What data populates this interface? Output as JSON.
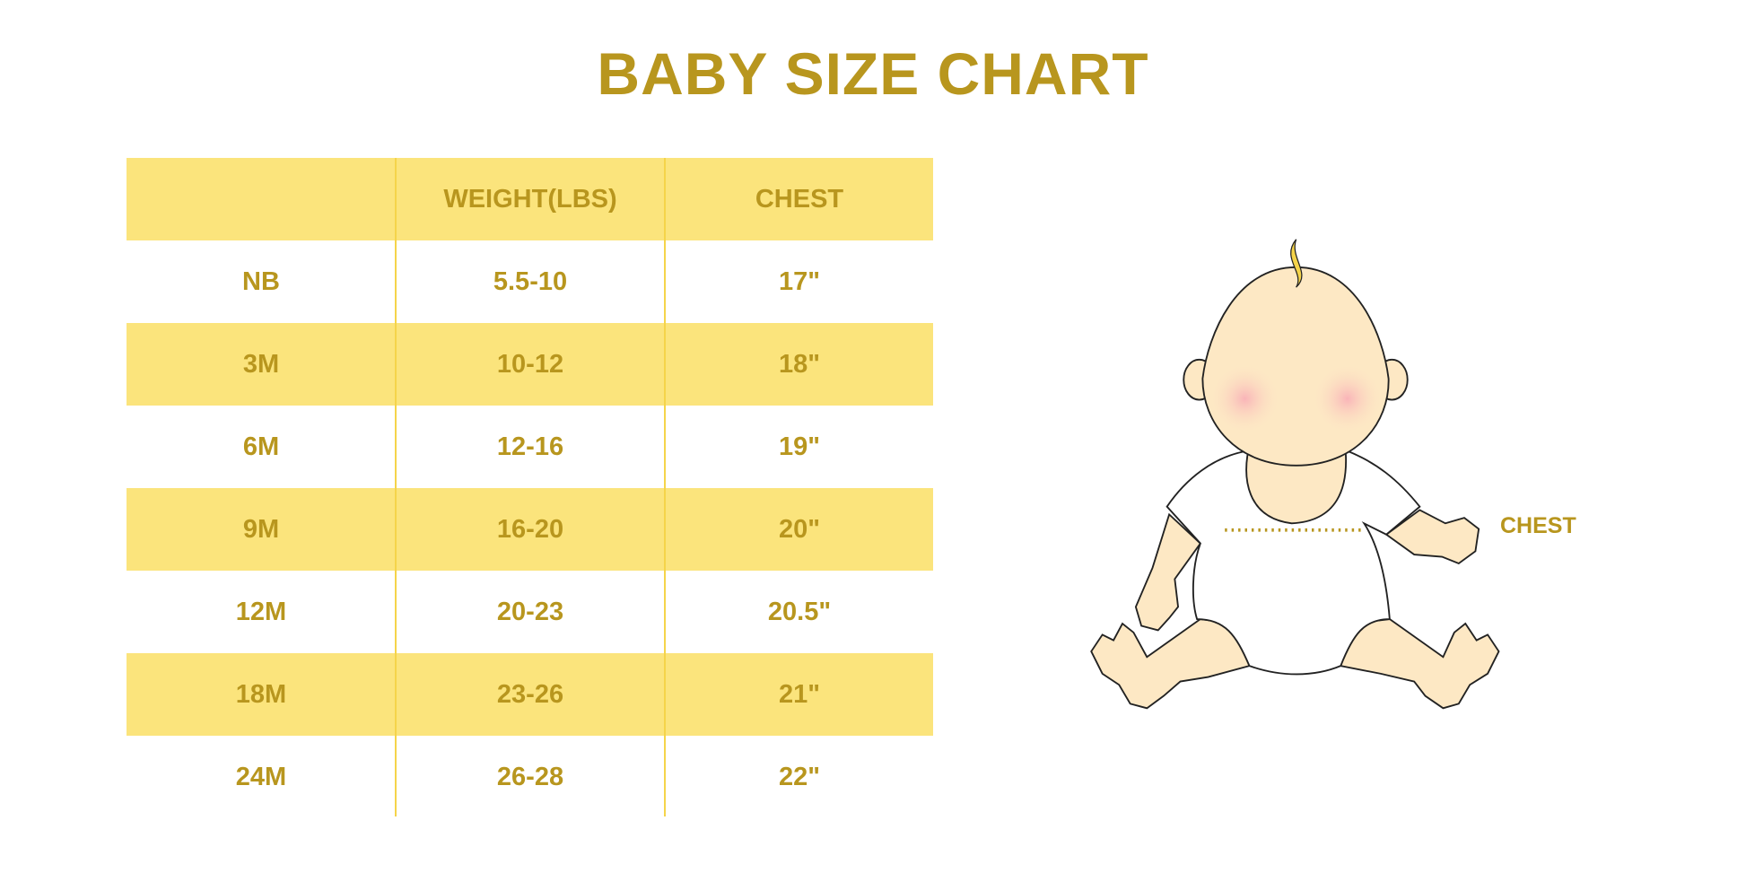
{
  "title": "BABY SIZE CHART",
  "table": {
    "headers": [
      "",
      "WEIGHT(LBS)",
      "CHEST"
    ],
    "rows": [
      [
        "NB",
        "5.5-10",
        "17\""
      ],
      [
        "3M",
        "10-12",
        "18\""
      ],
      [
        "6M",
        "12-16",
        "19\""
      ],
      [
        "9M",
        "16-20",
        "20\""
      ],
      [
        "12M",
        "20-23",
        "20.5\""
      ],
      [
        "18M",
        "23-26",
        "21\""
      ],
      [
        "24M",
        "26-28",
        "22\""
      ]
    ]
  },
  "illustration": {
    "chest_label": "CHEST"
  },
  "colors": {
    "text": "#b8961e",
    "band": "#fbe47c",
    "skin": "#fde8c4",
    "cheek": "#f9b4b8"
  }
}
